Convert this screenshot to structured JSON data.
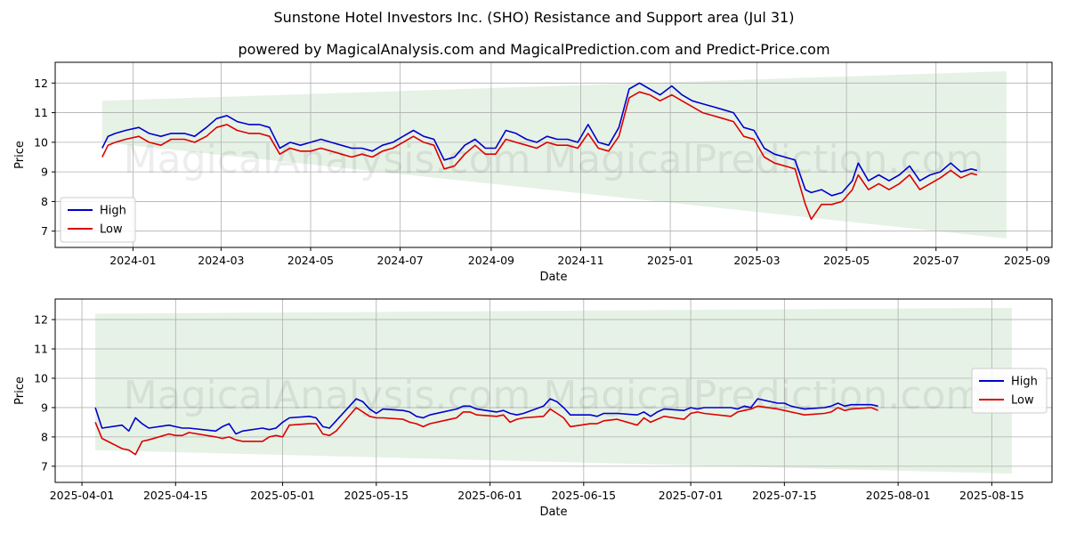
{
  "header": {
    "title": "Sunstone Hotel Investors Inc. (SHO) Resistance and Support area (Jul 31)",
    "subtitle": "powered by MagicalAnalysis.com and MagicalPrediction.com and Predict-Price.com"
  },
  "watermark": "MagicalAnalysis.com    MagicalPrediction.com",
  "colors": {
    "high": "#0000cc",
    "low": "#dd0000",
    "band": "#e6f2e6",
    "grid": "#b0b0b0"
  },
  "chart_data": [
    {
      "type": "line",
      "xlabel": "Date",
      "ylabel": "Price",
      "xlim": [
        "2023-11-09",
        "2025-09-18"
      ],
      "ylim": [
        6.45,
        12.7
      ],
      "xticks": [
        "2024-01",
        "2024-03",
        "2024-05",
        "2024-07",
        "2024-09",
        "2024-11",
        "2025-01",
        "2025-03",
        "2025-05",
        "2025-07",
        "2025-09"
      ],
      "yticks": [
        7,
        8,
        9,
        10,
        11,
        12
      ],
      "grid": true,
      "legend": "bottom-left",
      "band": {
        "x": [
          "2023-12-11",
          "2025-08-18"
        ],
        "upper": [
          11.4,
          12.4
        ],
        "lower": [
          10.0,
          6.75
        ]
      },
      "series": [
        {
          "name": "High",
          "x": [
            "2023-12-11",
            "2023-12-15",
            "2023-12-20",
            "2023-12-27",
            "2024-01-05",
            "2024-01-12",
            "2024-01-20",
            "2024-01-27",
            "2024-02-05",
            "2024-02-12",
            "2024-02-20",
            "2024-02-27",
            "2024-03-05",
            "2024-03-12",
            "2024-03-20",
            "2024-03-27",
            "2024-04-03",
            "2024-04-10",
            "2024-04-17",
            "2024-04-24",
            "2024-05-01",
            "2024-05-08",
            "2024-05-15",
            "2024-05-22",
            "2024-05-29",
            "2024-06-05",
            "2024-06-12",
            "2024-06-19",
            "2024-06-26",
            "2024-07-03",
            "2024-07-10",
            "2024-07-17",
            "2024-07-24",
            "2024-07-31",
            "2024-08-07",
            "2024-08-14",
            "2024-08-21",
            "2024-08-28",
            "2024-09-04",
            "2024-09-11",
            "2024-09-18",
            "2024-09-25",
            "2024-10-02",
            "2024-10-09",
            "2024-10-16",
            "2024-10-23",
            "2024-10-30",
            "2024-11-06",
            "2024-11-13",
            "2024-11-20",
            "2024-11-27",
            "2024-12-04",
            "2024-12-11",
            "2024-12-18",
            "2024-12-25",
            "2025-01-02",
            "2025-01-09",
            "2025-01-16",
            "2025-01-23",
            "2025-01-30",
            "2025-02-06",
            "2025-02-13",
            "2025-02-20",
            "2025-02-27",
            "2025-03-06",
            "2025-03-13",
            "2025-03-20",
            "2025-03-27",
            "2025-04-03",
            "2025-04-07",
            "2025-04-14",
            "2025-04-21",
            "2025-04-28",
            "2025-05-05",
            "2025-05-09",
            "2025-05-16",
            "2025-05-23",
            "2025-05-30",
            "2025-06-06",
            "2025-06-13",
            "2025-06-20",
            "2025-06-27",
            "2025-07-04",
            "2025-07-11",
            "2025-07-18",
            "2025-07-25",
            "2025-07-29"
          ],
          "y": [
            9.8,
            10.2,
            10.3,
            10.4,
            10.5,
            10.3,
            10.2,
            10.3,
            10.3,
            10.2,
            10.5,
            10.8,
            10.9,
            10.7,
            10.6,
            10.6,
            10.5,
            9.8,
            10.0,
            9.9,
            10.0,
            10.1,
            10.0,
            9.9,
            9.8,
            9.8,
            9.7,
            9.9,
            10.0,
            10.2,
            10.4,
            10.2,
            10.1,
            9.4,
            9.5,
            9.9,
            10.1,
            9.8,
            9.8,
            10.4,
            10.3,
            10.1,
            10.0,
            10.2,
            10.1,
            10.1,
            10.0,
            10.6,
            10.0,
            9.9,
            10.5,
            11.8,
            12.0,
            11.8,
            11.6,
            11.9,
            11.6,
            11.4,
            11.3,
            11.2,
            11.1,
            11.0,
            10.5,
            10.4,
            9.8,
            9.6,
            9.5,
            9.4,
            8.4,
            8.3,
            8.4,
            8.2,
            8.3,
            8.7,
            9.3,
            8.7,
            8.9,
            8.7,
            8.9,
            9.2,
            8.7,
            8.9,
            9.0,
            9.3,
            9.0,
            9.1,
            9.05
          ]
        },
        {
          "name": "Low",
          "x": [
            "2023-12-11",
            "2023-12-15",
            "2023-12-20",
            "2023-12-27",
            "2024-01-05",
            "2024-01-12",
            "2024-01-20",
            "2024-01-27",
            "2024-02-05",
            "2024-02-12",
            "2024-02-20",
            "2024-02-27",
            "2024-03-05",
            "2024-03-12",
            "2024-03-20",
            "2024-03-27",
            "2024-04-03",
            "2024-04-10",
            "2024-04-17",
            "2024-04-24",
            "2024-05-01",
            "2024-05-08",
            "2024-05-15",
            "2024-05-22",
            "2024-05-29",
            "2024-06-05",
            "2024-06-12",
            "2024-06-19",
            "2024-06-26",
            "2024-07-03",
            "2024-07-10",
            "2024-07-17",
            "2024-07-24",
            "2024-07-31",
            "2024-08-07",
            "2024-08-14",
            "2024-08-21",
            "2024-08-28",
            "2024-09-04",
            "2024-09-11",
            "2024-09-18",
            "2024-09-25",
            "2024-10-02",
            "2024-10-09",
            "2024-10-16",
            "2024-10-23",
            "2024-10-30",
            "2024-11-06",
            "2024-11-13",
            "2024-11-20",
            "2024-11-27",
            "2024-12-04",
            "2024-12-11",
            "2024-12-18",
            "2024-12-25",
            "2025-01-02",
            "2025-01-09",
            "2025-01-16",
            "2025-01-23",
            "2025-01-30",
            "2025-02-06",
            "2025-02-13",
            "2025-02-20",
            "2025-02-27",
            "2025-03-06",
            "2025-03-13",
            "2025-03-20",
            "2025-03-27",
            "2025-04-03",
            "2025-04-07",
            "2025-04-14",
            "2025-04-21",
            "2025-04-28",
            "2025-05-05",
            "2025-05-09",
            "2025-05-16",
            "2025-05-23",
            "2025-05-30",
            "2025-06-06",
            "2025-06-13",
            "2025-06-20",
            "2025-06-27",
            "2025-07-04",
            "2025-07-11",
            "2025-07-18",
            "2025-07-25",
            "2025-07-29"
          ],
          "y": [
            9.5,
            9.9,
            10.0,
            10.1,
            10.2,
            10.0,
            9.9,
            10.1,
            10.1,
            10.0,
            10.2,
            10.5,
            10.6,
            10.4,
            10.3,
            10.3,
            10.2,
            9.6,
            9.8,
            9.7,
            9.7,
            9.8,
            9.7,
            9.6,
            9.5,
            9.6,
            9.5,
            9.7,
            9.8,
            10.0,
            10.2,
            10.0,
            9.9,
            9.1,
            9.2,
            9.6,
            9.9,
            9.6,
            9.6,
            10.1,
            10.0,
            9.9,
            9.8,
            10.0,
            9.9,
            9.9,
            9.8,
            10.3,
            9.8,
            9.7,
            10.2,
            11.5,
            11.7,
            11.6,
            11.4,
            11.6,
            11.4,
            11.2,
            11.0,
            10.9,
            10.8,
            10.7,
            10.2,
            10.1,
            9.5,
            9.3,
            9.2,
            9.1,
            7.9,
            7.4,
            7.9,
            7.9,
            8.0,
            8.4,
            8.9,
            8.4,
            8.6,
            8.4,
            8.6,
            8.9,
            8.4,
            8.6,
            8.8,
            9.05,
            8.8,
            8.95,
            8.9
          ]
        }
      ]
    },
    {
      "type": "line",
      "xlabel": "Date",
      "ylabel": "Price",
      "xlim": [
        "2025-03-28",
        "2025-08-24"
      ],
      "ylim": [
        6.45,
        12.7
      ],
      "xticks": [
        "2025-04-01",
        "2025-04-15",
        "2025-05-01",
        "2025-05-15",
        "2025-06-01",
        "2025-06-15",
        "2025-07-01",
        "2025-07-15",
        "2025-08-01",
        "2025-08-15"
      ],
      "yticks": [
        7,
        8,
        9,
        10,
        11,
        12
      ],
      "grid": true,
      "legend": "right",
      "band": {
        "x": [
          "2025-04-03",
          "2025-08-18"
        ],
        "upper": [
          12.2,
          12.4
        ],
        "lower": [
          7.55,
          6.75
        ]
      },
      "series": [
        {
          "name": "High",
          "x": [
            "2025-04-03",
            "2025-04-04",
            "2025-04-07",
            "2025-04-08",
            "2025-04-09",
            "2025-04-10",
            "2025-04-11",
            "2025-04-14",
            "2025-04-15",
            "2025-04-16",
            "2025-04-17",
            "2025-04-21",
            "2025-04-22",
            "2025-04-23",
            "2025-04-24",
            "2025-04-25",
            "2025-04-28",
            "2025-04-29",
            "2025-04-30",
            "2025-05-01",
            "2025-05-02",
            "2025-05-05",
            "2025-05-06",
            "2025-05-07",
            "2025-05-08",
            "2025-05-09",
            "2025-05-12",
            "2025-05-13",
            "2025-05-14",
            "2025-05-15",
            "2025-05-16",
            "2025-05-19",
            "2025-05-20",
            "2025-05-21",
            "2025-05-22",
            "2025-05-23",
            "2025-05-27",
            "2025-05-28",
            "2025-05-29",
            "2025-05-30",
            "2025-06-02",
            "2025-06-03",
            "2025-06-04",
            "2025-06-05",
            "2025-06-06",
            "2025-06-09",
            "2025-06-10",
            "2025-06-11",
            "2025-06-12",
            "2025-06-13",
            "2025-06-16",
            "2025-06-17",
            "2025-06-18",
            "2025-06-20",
            "2025-06-23",
            "2025-06-24",
            "2025-06-25",
            "2025-06-26",
            "2025-06-27",
            "2025-06-30",
            "2025-07-01",
            "2025-07-02",
            "2025-07-03",
            "2025-07-07",
            "2025-07-08",
            "2025-07-09",
            "2025-07-10",
            "2025-07-11",
            "2025-07-14",
            "2025-07-15",
            "2025-07-16",
            "2025-07-17",
            "2025-07-18",
            "2025-07-21",
            "2025-07-22",
            "2025-07-23",
            "2025-07-24",
            "2025-07-25",
            "2025-07-28",
            "2025-07-29"
          ],
          "y": [
            9.0,
            8.3,
            8.4,
            8.2,
            8.65,
            8.45,
            8.3,
            8.4,
            8.35,
            8.3,
            8.3,
            8.2,
            8.35,
            8.45,
            8.1,
            8.2,
            8.3,
            8.25,
            8.3,
            8.5,
            8.65,
            8.7,
            8.65,
            8.35,
            8.3,
            8.55,
            9.3,
            9.2,
            8.95,
            8.8,
            8.95,
            8.9,
            8.85,
            8.7,
            8.65,
            8.75,
            8.95,
            9.05,
            9.05,
            8.95,
            8.85,
            8.9,
            8.8,
            8.75,
            8.8,
            9.05,
            9.3,
            9.2,
            9.0,
            8.75,
            8.75,
            8.7,
            8.8,
            8.8,
            8.75,
            8.85,
            8.7,
            8.85,
            8.95,
            8.9,
            9.0,
            8.95,
            9.0,
            9.0,
            8.95,
            9.05,
            9.0,
            9.3,
            9.15,
            9.15,
            9.05,
            9.0,
            8.95,
            9.0,
            9.05,
            9.15,
            9.05,
            9.1,
            9.1,
            9.05
          ]
        },
        {
          "name": "Low",
          "x": [
            "2025-04-03",
            "2025-04-04",
            "2025-04-07",
            "2025-04-08",
            "2025-04-09",
            "2025-04-10",
            "2025-04-11",
            "2025-04-14",
            "2025-04-15",
            "2025-04-16",
            "2025-04-17",
            "2025-04-21",
            "2025-04-22",
            "2025-04-23",
            "2025-04-24",
            "2025-04-25",
            "2025-04-28",
            "2025-04-29",
            "2025-04-30",
            "2025-05-01",
            "2025-05-02",
            "2025-05-05",
            "2025-05-06",
            "2025-05-07",
            "2025-05-08",
            "2025-05-09",
            "2025-05-12",
            "2025-05-13",
            "2025-05-14",
            "2025-05-15",
            "2025-05-16",
            "2025-05-19",
            "2025-05-20",
            "2025-05-21",
            "2025-05-22",
            "2025-05-23",
            "2025-05-27",
            "2025-05-28",
            "2025-05-29",
            "2025-05-30",
            "2025-06-02",
            "2025-06-03",
            "2025-06-04",
            "2025-06-05",
            "2025-06-06",
            "2025-06-09",
            "2025-06-10",
            "2025-06-11",
            "2025-06-12",
            "2025-06-13",
            "2025-06-16",
            "2025-06-17",
            "2025-06-18",
            "2025-06-20",
            "2025-06-23",
            "2025-06-24",
            "2025-06-25",
            "2025-06-26",
            "2025-06-27",
            "2025-06-30",
            "2025-07-01",
            "2025-07-02",
            "2025-07-03",
            "2025-07-07",
            "2025-07-08",
            "2025-07-09",
            "2025-07-10",
            "2025-07-11",
            "2025-07-14",
            "2025-07-15",
            "2025-07-16",
            "2025-07-17",
            "2025-07-18",
            "2025-07-21",
            "2025-07-22",
            "2025-07-23",
            "2025-07-24",
            "2025-07-25",
            "2025-07-28",
            "2025-07-29"
          ],
          "y": [
            8.5,
            7.95,
            7.6,
            7.55,
            7.4,
            7.85,
            7.9,
            8.1,
            8.05,
            8.05,
            8.15,
            8.0,
            7.95,
            8.0,
            7.9,
            7.85,
            7.85,
            8.0,
            8.05,
            8.0,
            8.4,
            8.45,
            8.45,
            8.1,
            8.05,
            8.2,
            9.0,
            8.85,
            8.7,
            8.65,
            8.65,
            8.6,
            8.5,
            8.45,
            8.35,
            8.45,
            8.65,
            8.85,
            8.85,
            8.75,
            8.7,
            8.75,
            8.5,
            8.6,
            8.65,
            8.7,
            8.95,
            8.8,
            8.65,
            8.35,
            8.45,
            8.45,
            8.55,
            8.6,
            8.4,
            8.65,
            8.5,
            8.6,
            8.7,
            8.6,
            8.8,
            8.85,
            8.8,
            8.7,
            8.85,
            8.9,
            8.95,
            9.05,
            8.95,
            8.9,
            8.85,
            8.8,
            8.75,
            8.8,
            8.85,
            9.0,
            8.9,
            8.95,
            9.0,
            8.9
          ]
        }
      ]
    }
  ]
}
